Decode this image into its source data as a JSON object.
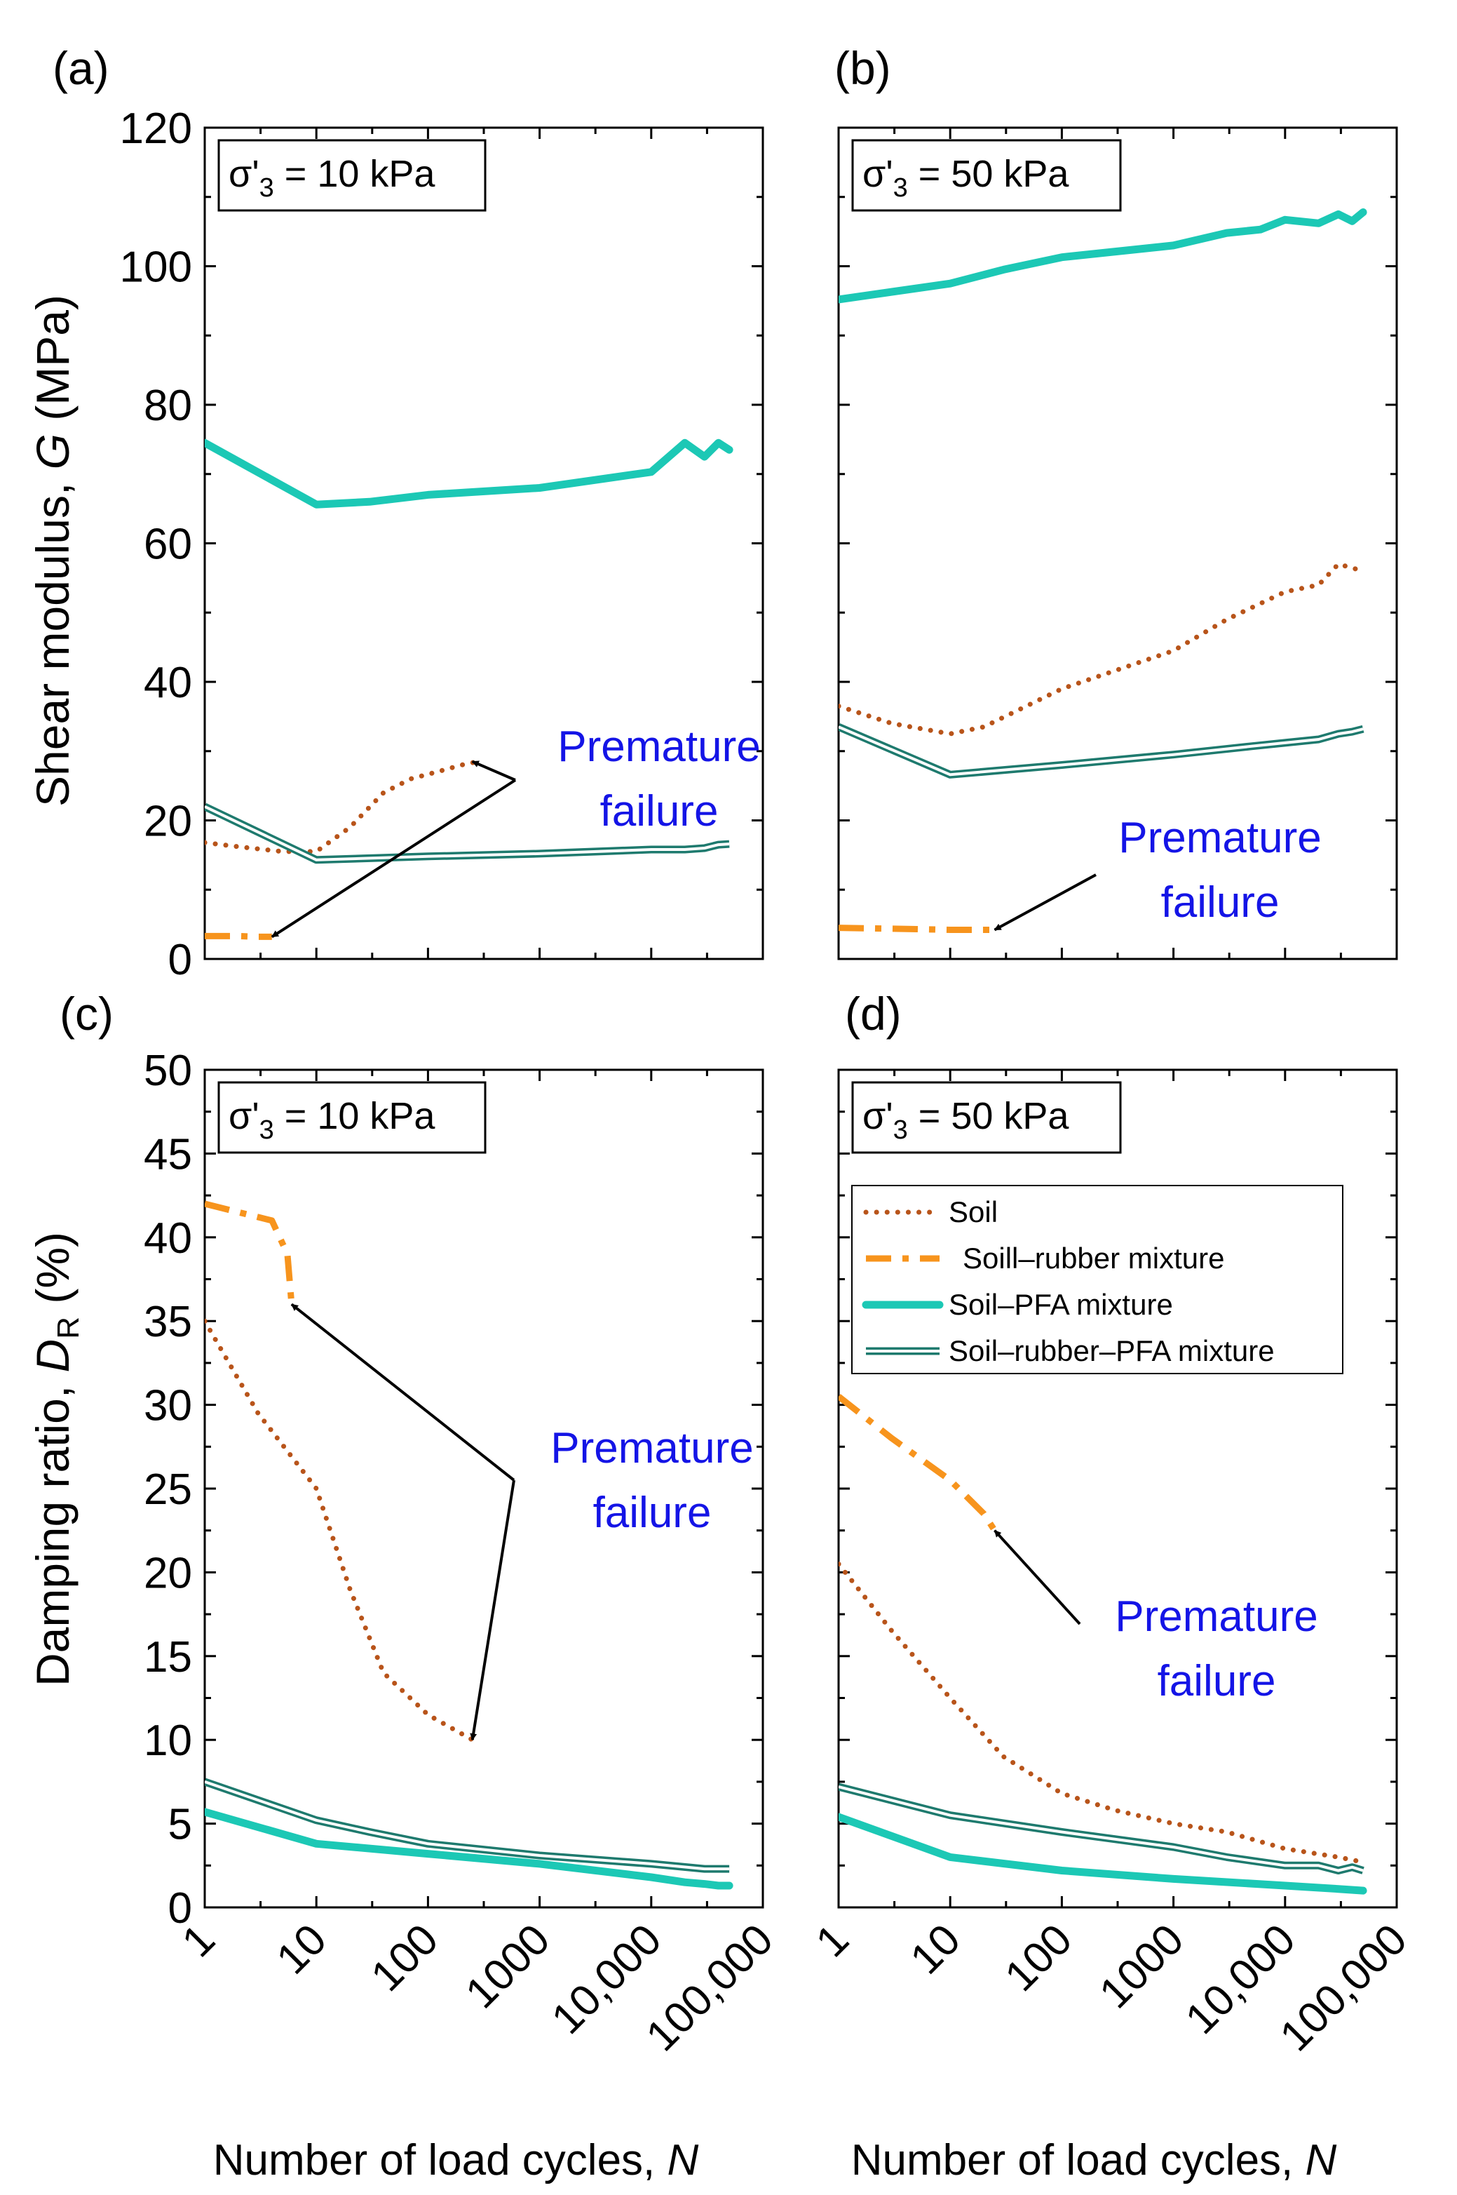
{
  "figure": {
    "x_title_prefix": "Number of load cycles, ",
    "x_title_var": "N",
    "y_title_top_prefix": "Shear modulus, ",
    "y_title_top_var": "G",
    "y_title_top_unit": " (MPa)",
    "y_title_bottom_prefix": "Damping ratio, ",
    "y_title_bottom_var": "D",
    "y_title_bottom_sub": "R",
    "y_title_bottom_unit": " (%)"
  },
  "series_styles": [
    {
      "name": "Soil",
      "color": "#B8541A",
      "style": "dotted"
    },
    {
      "name": "Soill–rubber mixture",
      "color": "#F7941D",
      "style": "dashdot"
    },
    {
      "name": "Soil–PFA mixture",
      "color": "#1CC8B5",
      "style": "solid-thick"
    },
    {
      "name": "Soil–rubber–PFA mixture",
      "color": "#1E7A6E",
      "style": "double"
    }
  ],
  "annotation_color": "#1414E6",
  "chart_data": [
    {
      "id": "a",
      "panel_label": "(a)",
      "type": "line",
      "condition": {
        "sym": "σ'",
        "sub": "3",
        "rest": " = 10 kPa"
      },
      "xscale": "log",
      "xlim": [
        1,
        100000
      ],
      "x_ticks": [
        "1",
        "10",
        "100",
        "1000",
        "10,000",
        "100,000"
      ],
      "ylim": [
        0,
        120
      ],
      "y_ticks": [
        "0",
        "20",
        "40",
        "60",
        "80",
        "100",
        "120"
      ],
      "series": [
        {
          "name": "Soil",
          "x": [
            1,
            2,
            5,
            10,
            20,
            40,
            70,
            120,
            200,
            280
          ],
          "y": [
            16.8,
            16.2,
            15.5,
            15.5,
            19,
            24,
            26,
            27,
            28,
            28.5
          ]
        },
        {
          "name": "Soill–rubber mixture",
          "x": [
            1,
            2,
            3,
            4
          ],
          "y": [
            3.3,
            3.3,
            3.2,
            3.2
          ]
        },
        {
          "name": "Soil–PFA mixture",
          "x": [
            1,
            10,
            30,
            100,
            1000,
            10000,
            20000,
            30000,
            40000,
            50000
          ],
          "y": [
            74.5,
            65.6,
            66,
            67,
            68,
            70.3,
            74.5,
            72.5,
            74.5,
            73.5
          ]
        },
        {
          "name": "Soil–rubber–PFA mixture",
          "x": [
            1,
            10,
            100,
            1000,
            10000,
            20000,
            30000,
            40000,
            50000
          ],
          "y": [
            22,
            14.3,
            14.8,
            15.2,
            15.8,
            15.8,
            16,
            16.5,
            16.6
          ]
        }
      ],
      "annotation": {
        "line1": "Premature",
        "line2": "failure",
        "arrow_targets": [
          {
            "x": 250,
            "y": 28.5
          },
          {
            "x": 4,
            "y": 3.2
          }
        ]
      }
    },
    {
      "id": "b",
      "panel_label": "(b)",
      "type": "line",
      "condition": {
        "sym": "σ'",
        "sub": "3",
        "rest": " = 50 kPa"
      },
      "xscale": "log",
      "xlim": [
        1,
        100000
      ],
      "x_ticks": [
        "1",
        "10",
        "100",
        "1000",
        "10,000",
        "100,000"
      ],
      "ylim": [
        0,
        120
      ],
      "y_ticks": [
        "0",
        "20",
        "40",
        "60",
        "80",
        "100",
        "120"
      ],
      "series": [
        {
          "name": "Soil",
          "x": [
            1,
            3,
            10,
            20,
            100,
            1000,
            3000,
            10000,
            20000,
            30000,
            50000
          ],
          "y": [
            36.5,
            34,
            32.5,
            33.5,
            39,
            44.5,
            49,
            53,
            54,
            57,
            56
          ]
        },
        {
          "name": "Soill–rubber mixture",
          "x": [
            1,
            5,
            10,
            20,
            25
          ],
          "y": [
            4.5,
            4.3,
            4.2,
            4.2,
            4.2
          ]
        },
        {
          "name": "Soil–PFA mixture",
          "x": [
            1,
            10,
            30,
            100,
            1000,
            3000,
            6000,
            10000,
            20000,
            30000,
            40000,
            50000
          ],
          "y": [
            95.2,
            97.5,
            99.5,
            101.3,
            103,
            104.8,
            105.3,
            106.7,
            106.2,
            107.5,
            106.5,
            107.8
          ]
        },
        {
          "name": "Soil–rubber–PFA mixture",
          "x": [
            1,
            10,
            100,
            1000,
            5000,
            10000,
            20000,
            30000,
            40000,
            50000
          ],
          "y": [
            33.5,
            26.6,
            28,
            29.5,
            30.7,
            31.2,
            31.7,
            32.5,
            32.8,
            33.2
          ]
        }
      ],
      "annotation": {
        "line1": "Premature",
        "line2": "failure",
        "arrow_targets": [
          {
            "x": 25,
            "y": 4.2
          }
        ]
      }
    },
    {
      "id": "c",
      "panel_label": "(c)",
      "type": "line",
      "condition": {
        "sym": "σ'",
        "sub": "3",
        "rest": " = 10 kPa"
      },
      "xscale": "log",
      "xlim": [
        1,
        100000
      ],
      "x_ticks": [
        "1",
        "10",
        "100",
        "1000",
        "10,000",
        "100,000"
      ],
      "ylim": [
        0,
        50
      ],
      "y_ticks": [
        "0",
        "5",
        "10",
        "15",
        "20",
        "25",
        "30",
        "35",
        "40",
        "45",
        "50"
      ],
      "series": [
        {
          "name": "Soil",
          "x": [
            1,
            3,
            10,
            20,
            40,
            100,
            250
          ],
          "y": [
            35,
            29.5,
            25,
            19,
            14,
            11.5,
            10
          ]
        },
        {
          "name": "Soill–rubber mixture",
          "x": [
            1,
            4,
            5.5,
            6
          ],
          "y": [
            42,
            41,
            39,
            36
          ]
        },
        {
          "name": "Soil–PFA mixture",
          "x": [
            1,
            10,
            100,
            1000,
            10000,
            20000,
            30000,
            40000,
            50000
          ],
          "y": [
            5.7,
            3.8,
            3.2,
            2.6,
            1.8,
            1.5,
            1.4,
            1.3,
            1.3
          ]
        },
        {
          "name": "Soil–rubber–PFA mixture",
          "x": [
            1,
            10,
            30,
            100,
            1000,
            10000,
            30000,
            50000
          ],
          "y": [
            7.5,
            5.2,
            4.5,
            3.8,
            3.1,
            2.6,
            2.3,
            2.3
          ]
        }
      ],
      "legend": null,
      "annotation": {
        "line1": "Premature",
        "line2": "failure",
        "arrow_targets": [
          {
            "x": 6,
            "y": 36
          },
          {
            "x": 250,
            "y": 10
          }
        ]
      }
    },
    {
      "id": "d",
      "panel_label": "(d)",
      "type": "line",
      "condition": {
        "sym": "σ'",
        "sub": "3",
        "rest": " = 50 kPa"
      },
      "xscale": "log",
      "xlim": [
        1,
        100000
      ],
      "x_ticks": [
        "1",
        "10",
        "100",
        "1000",
        "10,000",
        "100,000"
      ],
      "ylim": [
        0,
        50
      ],
      "y_ticks": [
        "0",
        "5",
        "10",
        "15",
        "20",
        "25",
        "30",
        "35",
        "40",
        "45",
        "50"
      ],
      "series": [
        {
          "name": "Soil",
          "x": [
            1,
            3,
            10,
            30,
            100,
            300,
            1000,
            3000,
            10000,
            30000,
            50000
          ],
          "y": [
            20.5,
            16.5,
            12.5,
            9,
            6.8,
            5.8,
            5,
            4.5,
            3.5,
            3,
            2.7
          ]
        },
        {
          "name": "Soill–rubber mixture",
          "x": [
            1,
            3,
            10,
            20,
            25
          ],
          "y": [
            30.5,
            28,
            25.5,
            23.5,
            22.5
          ]
        },
        {
          "name": "Soil–PFA mixture",
          "x": [
            1,
            10,
            100,
            1000,
            10000,
            30000,
            50000
          ],
          "y": [
            5.4,
            3,
            2.2,
            1.7,
            1.3,
            1.1,
            1
          ]
        },
        {
          "name": "Soil–rubber–PFA mixture",
          "x": [
            1,
            10,
            100,
            1000,
            3000,
            10000,
            20000,
            30000,
            40000,
            50000
          ],
          "y": [
            7.2,
            5.5,
            4.5,
            3.6,
            3,
            2.5,
            2.5,
            2.2,
            2.4,
            2.2
          ]
        }
      ],
      "legend": {
        "position": "upper-right",
        "entries": [
          "Soil",
          "Soill–rubber mixture",
          "Soil–PFA mixture",
          "Soil–rubber–PFA mixture"
        ]
      },
      "annotation": {
        "line1": "Premature",
        "line2": "failure",
        "arrow_targets": [
          {
            "x": 25,
            "y": 22.5
          }
        ]
      }
    }
  ]
}
